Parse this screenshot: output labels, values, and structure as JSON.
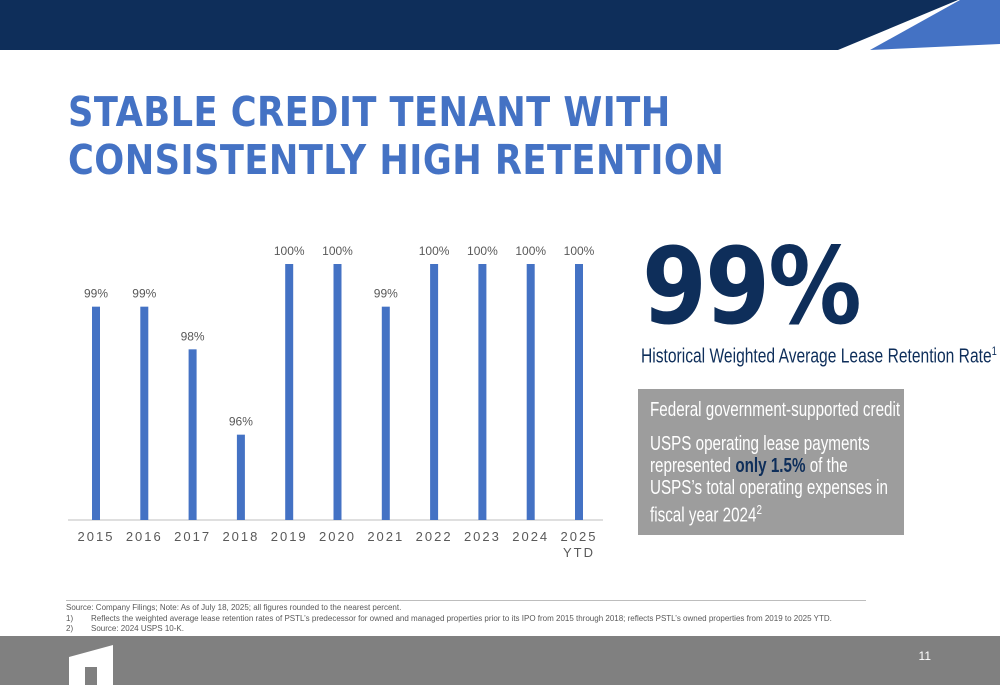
{
  "title": "STABLE CREDIT TENANT WITH CONSISTENTLY HIGH RETENTION",
  "headline": {
    "value": "99%",
    "subtitle": "Historical Weighted Average Lease Retention Rate",
    "subtitle_note": "1"
  },
  "callout": {
    "line1": "Federal government-supported credit",
    "line2_pre": "USPS operating lease payments represented ",
    "line2_highlight": "only 1.5%",
    "line2_post": " of the USPS’s total operating expenses in fiscal year 2024",
    "line2_note": "2"
  },
  "chart_data": {
    "type": "bar",
    "categories": [
      "2015",
      "2016",
      "2017",
      "2018",
      "2019",
      "2020",
      "2021",
      "2022",
      "2023",
      "2024",
      "2025 YTD"
    ],
    "values": [
      99,
      99,
      98,
      96,
      100,
      100,
      99,
      100,
      100,
      100,
      100
    ],
    "data_labels": [
      "99%",
      "99%",
      "98%",
      "96%",
      "100%",
      "100%",
      "99%",
      "100%",
      "100%",
      "100%",
      "100%"
    ],
    "ylim": [
      94,
      100
    ],
    "grid": false,
    "color": "#4472c4"
  },
  "footnotes": {
    "source": "Source: Company Filings; Note: As of July 18, 2025; all figures rounded to the nearest percent.",
    "items": [
      {
        "num": "1)",
        "text": "Reflects the weighted average lease retention rates of PSTL’s predecessor for owned and managed properties prior to its IPO from 2015 through 2018; reflects PSTL’s owned properties from 2019 to 2025 YTD."
      },
      {
        "num": "2)",
        "text": "Source: 2024 USPS 10-K."
      }
    ]
  },
  "page_number": "11",
  "colors": {
    "navy": "#0e2e5a",
    "accent_blue": "#4472c4",
    "gray": "#808080",
    "callout_gray": "#9d9d9d"
  }
}
